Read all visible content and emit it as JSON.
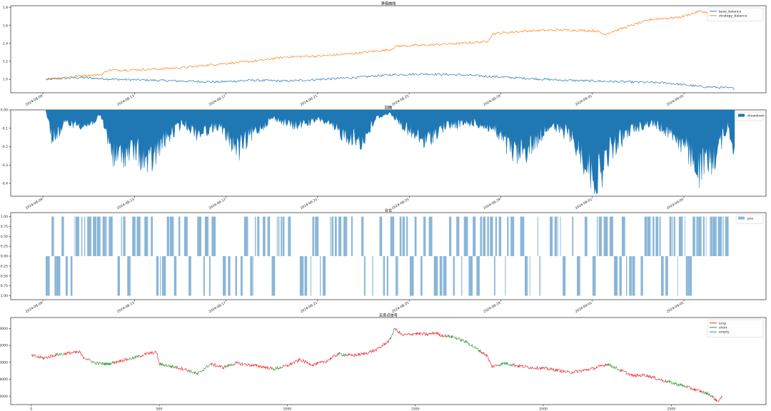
{
  "colors": {
    "blue": "#1f77b4",
    "orange": "#ff7f0e",
    "fill_blue": "#1f77b4",
    "fill_light": "#8ab6d8",
    "red": "#e41a1c",
    "green": "#1a8a1a"
  },
  "chart_data": [
    {
      "type": "line",
      "title": "净值曲线",
      "xlabel": "",
      "ylabel": "",
      "x_dates": [
        "2024-08-09",
        "2024-08-13",
        "2024-08-17",
        "2024-08-21",
        "2024-08-25",
        "2024-08-29",
        "2024-09-01",
        "2024-09-05"
      ],
      "x_tick_labels": [
        "2024-08-09",
        "2024-08-13",
        "2024-08-17",
        "2024-08-21",
        "2024-08-25",
        "2024-08-29",
        "2024-09-01",
        "2024-09-05"
      ],
      "y_ticks": [
        1.0,
        1.2,
        1.4,
        1.6,
        1.8
      ],
      "y_tick_labels": [
        "1.0",
        "1.2",
        "1.4",
        "1.6",
        "1.8"
      ],
      "ylim": [
        0.85,
        1.82
      ],
      "legend_position": "top-right",
      "series": [
        {
          "name": "base_balance",
          "color": "#1f77b4",
          "keypoints": [
            [
              0,
              1.0
            ],
            [
              0.05,
              1.02
            ],
            [
              0.1,
              1.0
            ],
            [
              0.15,
              0.99
            ],
            [
              0.2,
              0.98
            ],
            [
              0.25,
              0.97
            ],
            [
              0.3,
              0.99
            ],
            [
              0.35,
              0.98
            ],
            [
              0.4,
              1.0
            ],
            [
              0.45,
              1.02
            ],
            [
              0.5,
              1.05
            ],
            [
              0.55,
              1.06
            ],
            [
              0.6,
              1.05
            ],
            [
              0.65,
              1.03
            ],
            [
              0.7,
              1.01
            ],
            [
              0.75,
              0.99
            ],
            [
              0.8,
              0.98
            ],
            [
              0.85,
              0.97
            ],
            [
              0.9,
              0.96
            ],
            [
              0.95,
              0.92
            ],
            [
              1.0,
              0.9
            ]
          ]
        },
        {
          "name": "strategy_balance",
          "color": "#ff7f0e",
          "keypoints": [
            [
              0,
              1.0
            ],
            [
              0.05,
              1.04
            ],
            [
              0.08,
              1.05
            ],
            [
              0.09,
              1.1
            ],
            [
              0.15,
              1.11
            ],
            [
              0.2,
              1.13
            ],
            [
              0.25,
              1.17
            ],
            [
              0.3,
              1.2
            ],
            [
              0.35,
              1.25
            ],
            [
              0.4,
              1.26
            ],
            [
              0.45,
              1.29
            ],
            [
              0.5,
              1.33
            ],
            [
              0.51,
              1.37
            ],
            [
              0.55,
              1.38
            ],
            [
              0.6,
              1.4
            ],
            [
              0.64,
              1.42
            ],
            [
              0.65,
              1.51
            ],
            [
              0.7,
              1.54
            ],
            [
              0.75,
              1.55
            ],
            [
              0.8,
              1.54
            ],
            [
              0.81,
              1.5
            ],
            [
              0.85,
              1.6
            ],
            [
              0.88,
              1.67
            ],
            [
              0.92,
              1.69
            ],
            [
              0.95,
              1.76
            ],
            [
              0.98,
              1.71
            ],
            [
              1.0,
              1.73
            ]
          ]
        }
      ]
    },
    {
      "type": "area",
      "title": "回撤",
      "x_tick_labels": [
        "2024-08-09",
        "2024-08-13",
        "2024-08-17",
        "2024-08-21",
        "2024-08-25",
        "2024-08-29",
        "2024-09-01",
        "2024-09-05"
      ],
      "y_ticks": [
        0.0,
        -0.1,
        -0.2,
        -0.3,
        -0.4
      ],
      "y_tick_labels": [
        "0.00",
        "-0.1",
        "-0.2",
        "-0.3",
        "-0.4"
      ],
      "ylim": [
        -0.47,
        0.0
      ],
      "legend_position": "top-right",
      "series": [
        {
          "name": "drawdown",
          "color": "#1f77b4",
          "keypoints": [
            [
              0,
              0
            ],
            [
              0.01,
              -0.18
            ],
            [
              0.03,
              -0.08
            ],
            [
              0.06,
              -0.1
            ],
            [
              0.08,
              -0.04
            ],
            [
              0.1,
              -0.3
            ],
            [
              0.13,
              -0.25
            ],
            [
              0.15,
              -0.35
            ],
            [
              0.17,
              -0.2
            ],
            [
              0.2,
              -0.08
            ],
            [
              0.22,
              -0.15
            ],
            [
              0.25,
              -0.1
            ],
            [
              0.28,
              -0.25
            ],
            [
              0.3,
              -0.15
            ],
            [
              0.33,
              -0.05
            ],
            [
              0.36,
              -0.1
            ],
            [
              0.4,
              -0.06
            ],
            [
              0.43,
              -0.15
            ],
            [
              0.46,
              -0.2
            ],
            [
              0.48,
              -0.05
            ],
            [
              0.5,
              -0.02
            ],
            [
              0.53,
              -0.15
            ],
            [
              0.55,
              -0.2
            ],
            [
              0.58,
              -0.1
            ],
            [
              0.62,
              -0.08
            ],
            [
              0.65,
              -0.12
            ],
            [
              0.68,
              -0.28
            ],
            [
              0.7,
              -0.25
            ],
            [
              0.73,
              -0.1
            ],
            [
              0.76,
              -0.15
            ],
            [
              0.78,
              -0.3
            ],
            [
              0.8,
              -0.45
            ],
            [
              0.82,
              -0.25
            ],
            [
              0.85,
              -0.12
            ],
            [
              0.88,
              -0.08
            ],
            [
              0.91,
              -0.15
            ],
            [
              0.93,
              -0.25
            ],
            [
              0.95,
              -0.38
            ],
            [
              0.97,
              -0.3
            ],
            [
              0.99,
              -0.1
            ],
            [
              1.0,
              -0.25
            ]
          ]
        }
      ]
    },
    {
      "type": "area",
      "title": "仓位",
      "x_tick_labels": [
        "2024-08-09",
        "2024-08-13",
        "2024-08-17",
        "2024-08-21",
        "2024-08-25",
        "2024-08-29",
        "2024-09-01",
        "2024-09-05"
      ],
      "y_ticks": [
        1.0,
        0.75,
        0.5,
        0.25,
        0.0,
        -0.25,
        -0.5,
        -0.75,
        -1.0
      ],
      "y_tick_labels": [
        "1.00",
        "0.75",
        "0.50",
        "0.25",
        "0.00",
        "-0.25",
        "-0.50",
        "-0.75",
        "-1.00"
      ],
      "ylim": [
        -1.1,
        1.1
      ],
      "legend_position": "top-right",
      "series": [
        {
          "name": "pos",
          "color": "#8ab6d8"
        }
      ]
    },
    {
      "type": "line",
      "title": "买卖点信号",
      "x_ticks": [
        0,
        500,
        1000,
        1500,
        2000,
        2500
      ],
      "x_tick_labels": [
        "0",
        "500",
        "1000",
        "1500",
        "2000",
        "2500"
      ],
      "xlim": [
        -80,
        2870
      ],
      "y_ticks": [
        56000,
        58000,
        60000,
        62000,
        64000
      ],
      "y_tick_labels": [
        "56000",
        "58000",
        "60000",
        "62000",
        "64000"
      ],
      "ylim": [
        55000,
        65300
      ],
      "legend_position": "top-right",
      "series": [
        {
          "name": "long",
          "color": "#e41a1c"
        },
        {
          "name": "short",
          "color": "#1a8a1a"
        },
        {
          "name": "empty",
          "color": "#1f77b4"
        }
      ],
      "price_keypoints": [
        [
          0,
          60800
        ],
        [
          50,
          60500
        ],
        [
          100,
          60900
        ],
        [
          150,
          61100
        ],
        [
          190,
          61200
        ],
        [
          200,
          60700
        ],
        [
          250,
          59900
        ],
        [
          300,
          59800
        ],
        [
          350,
          60200
        ],
        [
          400,
          60500
        ],
        [
          450,
          61000
        ],
        [
          490,
          61200
        ],
        [
          500,
          59800
        ],
        [
          550,
          59500
        ],
        [
          600,
          59200
        ],
        [
          650,
          58600
        ],
        [
          700,
          59800
        ],
        [
          750,
          59400
        ],
        [
          800,
          59900
        ],
        [
          850,
          59700
        ],
        [
          900,
          59500
        ],
        [
          950,
          59200
        ],
        [
          1000,
          59600
        ],
        [
          1050,
          60300
        ],
        [
          1100,
          59700
        ],
        [
          1150,
          60100
        ],
        [
          1200,
          61000
        ],
        [
          1250,
          60800
        ],
        [
          1300,
          61000
        ],
        [
          1350,
          61500
        ],
        [
          1400,
          62600
        ],
        [
          1420,
          64000
        ],
        [
          1450,
          63200
        ],
        [
          1500,
          63400
        ],
        [
          1550,
          63300
        ],
        [
          1580,
          63500
        ],
        [
          1600,
          63200
        ],
        [
          1650,
          63000
        ],
        [
          1700,
          62400
        ],
        [
          1750,
          61400
        ],
        [
          1780,
          60800
        ],
        [
          1800,
          59500
        ],
        [
          1850,
          59900
        ],
        [
          1900,
          59600
        ],
        [
          1950,
          59400
        ],
        [
          2000,
          59300
        ],
        [
          2050,
          59100
        ],
        [
          2100,
          58800
        ],
        [
          2150,
          59000
        ],
        [
          2200,
          59300
        ],
        [
          2250,
          59800
        ],
        [
          2300,
          59100
        ],
        [
          2350,
          58400
        ],
        [
          2400,
          58500
        ],
        [
          2450,
          58000
        ],
        [
          2500,
          57600
        ],
        [
          2550,
          57200
        ],
        [
          2600,
          56700
        ],
        [
          2650,
          56200
        ],
        [
          2680,
          55400
        ],
        [
          2700,
          55900
        ]
      ],
      "signal_segments": [
        [
          0,
          100,
          "long"
        ],
        [
          100,
          130,
          "short"
        ],
        [
          130,
          230,
          "long"
        ],
        [
          230,
          320,
          "short"
        ],
        [
          320,
          380,
          "long"
        ],
        [
          380,
          420,
          "short"
        ],
        [
          420,
          500,
          "long"
        ],
        [
          500,
          560,
          "short"
        ],
        [
          560,
          620,
          "long"
        ],
        [
          620,
          700,
          "short"
        ],
        [
          700,
          760,
          "long"
        ],
        [
          760,
          790,
          "short"
        ],
        [
          790,
          940,
          "long"
        ],
        [
          940,
          980,
          "short"
        ],
        [
          980,
          1200,
          "long"
        ],
        [
          1200,
          1230,
          "short"
        ],
        [
          1230,
          1400,
          "long"
        ],
        [
          1400,
          1420,
          "short"
        ],
        [
          1420,
          1620,
          "long"
        ],
        [
          1620,
          1760,
          "short"
        ],
        [
          1760,
          1820,
          "long"
        ],
        [
          1820,
          1880,
          "short"
        ],
        [
          1880,
          2250,
          "long"
        ],
        [
          2250,
          2300,
          "short"
        ],
        [
          2300,
          2480,
          "long"
        ],
        [
          2480,
          2560,
          "short"
        ],
        [
          2560,
          2620,
          "long"
        ],
        [
          2620,
          2660,
          "short"
        ],
        [
          2660,
          2710,
          "long"
        ]
      ]
    }
  ]
}
